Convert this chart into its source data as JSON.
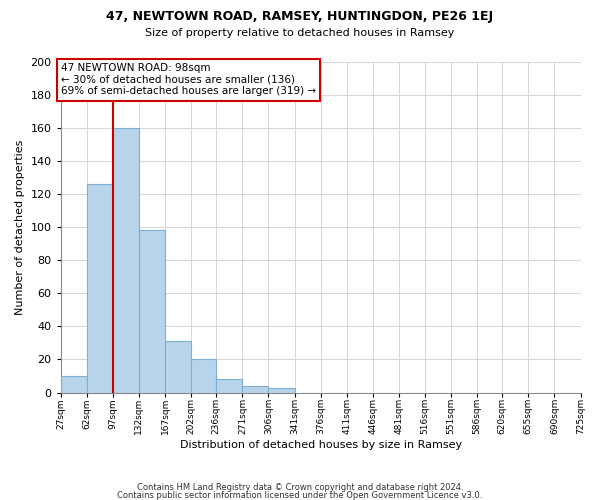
{
  "title1": "47, NEWTOWN ROAD, RAMSEY, HUNTINGDON, PE26 1EJ",
  "title2": "Size of property relative to detached houses in Ramsey",
  "xlabel": "Distribution of detached houses by size in Ramsey",
  "ylabel": "Number of detached properties",
  "footer1": "Contains HM Land Registry data © Crown copyright and database right 2024.",
  "footer2": "Contains public sector information licensed under the Open Government Licence v3.0.",
  "bin_edges": [
    27,
    62,
    97,
    132,
    167,
    202,
    236,
    271,
    306,
    341,
    376,
    411,
    446,
    481,
    516,
    551,
    586,
    620,
    655,
    690,
    725
  ],
  "bar_heights": [
    10,
    126,
    160,
    98,
    31,
    20,
    8,
    4,
    3,
    0,
    0,
    0,
    0,
    0,
    0,
    0,
    0,
    0,
    0,
    0
  ],
  "bar_color": "#b8d4ea",
  "bar_edgecolor": "#7bafd4",
  "grid_color": "#d0d0d0",
  "property_line_x": 97,
  "property_line_color": "#cc0000",
  "annotation_line1": "47 NEWTOWN ROAD: 98sqm",
  "annotation_line2": "← 30% of detached houses are smaller (136)",
  "annotation_line3": "69% of semi-detached houses are larger (319) →",
  "annotation_box_edgecolor": "#cc0000",
  "annotation_box_facecolor": "#ffffff",
  "ylim": [
    0,
    200
  ],
  "yticks": [
    0,
    20,
    40,
    60,
    80,
    100,
    120,
    140,
    160,
    180,
    200
  ],
  "background_color": "#ffffff",
  "xtick_labels": [
    "27sqm",
    "62sqm",
    "97sqm",
    "132sqm",
    "167sqm",
    "202sqm",
    "236sqm",
    "271sqm",
    "306sqm",
    "341sqm",
    "376sqm",
    "411sqm",
    "446sqm",
    "481sqm",
    "516sqm",
    "551sqm",
    "586sqm",
    "620sqm",
    "655sqm",
    "690sqm",
    "725sqm"
  ]
}
